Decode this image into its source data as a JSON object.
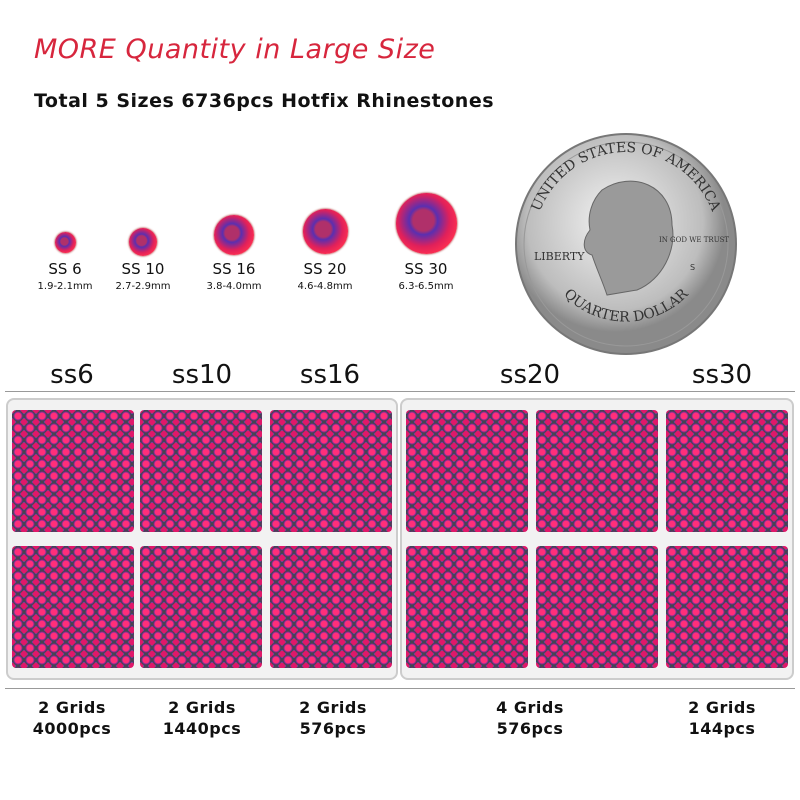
{
  "title": "MORE Quantity in Large Size",
  "subtitle": "Total 5 Sizes 6736pcs Hotfix Rhinestones",
  "sizes": [
    {
      "label": "SS 6",
      "mm": "1.9-2.1mm"
    },
    {
      "label": "SS 10",
      "mm": "2.7-2.9mm"
    },
    {
      "label": "SS 16",
      "mm": "3.8-4.0mm"
    },
    {
      "label": "SS 20",
      "mm": "4.6-4.8mm"
    },
    {
      "label": "SS 30",
      "mm": "6.3-6.5mm"
    }
  ],
  "coin": {
    "top": "UNITED STATES OF AMERICA",
    "left": "LIBERTY",
    "motto": "IN GOD WE TRUST",
    "bottom": "QUARTER DOLLAR",
    "mint": "S"
  },
  "columns": [
    {
      "name": "ss6",
      "grids": "2 Grids",
      "pcs": "4000pcs"
    },
    {
      "name": "ss10",
      "grids": "2 Grids",
      "pcs": "1440pcs"
    },
    {
      "name": "ss16",
      "grids": "2 Grids",
      "pcs": "576pcs"
    },
    {
      "name": "ss20",
      "grids": "4 Grids",
      "pcs": "576pcs"
    },
    {
      "name": "ss30",
      "grids": "2 Grids",
      "pcs": "144pcs"
    }
  ],
  "colors": {
    "title": "#d7263d",
    "stone": "#e0205a"
  }
}
